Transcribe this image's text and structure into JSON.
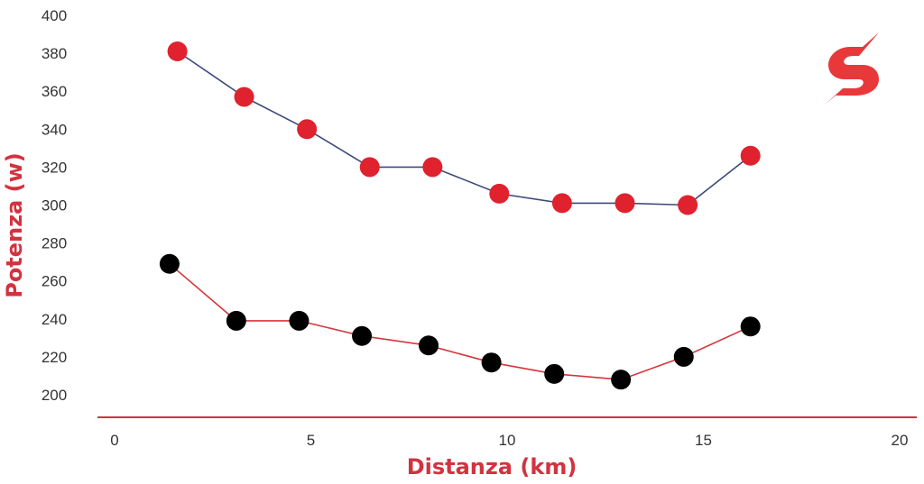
{
  "chart_data": {
    "type": "line",
    "xlabel": "Distanza (km)",
    "ylabel": "Potenza (w)",
    "xlim": [
      0,
      20
    ],
    "ylim": [
      200,
      400
    ],
    "x_ticks": [
      "0",
      "5",
      "10",
      "15",
      "20"
    ],
    "y_ticks": [
      "200",
      "220",
      "240",
      "260",
      "280",
      "300",
      "320",
      "340",
      "360",
      "380",
      "400"
    ],
    "grid": false,
    "legend": "none",
    "series": [
      {
        "x": [
          1.6,
          3.3,
          4.9,
          6.5,
          8.1,
          9.8,
          11.4,
          13.0,
          14.6,
          16.2
        ],
        "y": [
          381,
          357,
          340,
          320,
          320,
          306,
          301,
          301,
          300,
          326
        ],
        "marker_color": "#e0212e",
        "line_color": "#3d4a7a"
      },
      {
        "x": [
          1.4,
          3.1,
          4.7,
          6.3,
          8.0,
          9.6,
          11.2,
          12.9,
          14.5,
          16.2
        ],
        "y": [
          269,
          239,
          239,
          231,
          226,
          217,
          211,
          208,
          220,
          236
        ],
        "marker_color": "#000000",
        "line_color": "#d6353a"
      }
    ]
  },
  "colors": {
    "accent": "#d3323f",
    "logo": "#e8383a",
    "baseline": "#d3323f"
  },
  "logo": {
    "icon": "lightning-s-logo-icon"
  }
}
